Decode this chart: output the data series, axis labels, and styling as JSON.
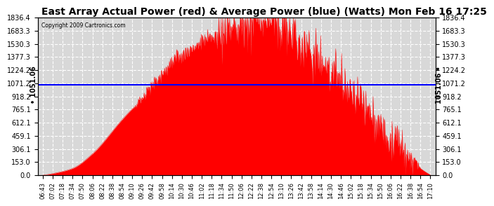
{
  "title": "East Array Actual Power (red) & Average Power (blue) (Watts) Mon Feb 16 17:25",
  "copyright": "Copyright 2009 Cartronics.com",
  "average_power": 1051.06,
  "y_ticks": [
    0.0,
    153.0,
    306.1,
    459.1,
    612.1,
    765.1,
    918.2,
    1071.2,
    1224.2,
    1377.3,
    1530.3,
    1683.3,
    1836.4
  ],
  "y_max": 1836.4,
  "y_min": 0.0,
  "x_labels": [
    "06:43",
    "07:02",
    "07:18",
    "07:34",
    "07:50",
    "08:06",
    "08:22",
    "08:38",
    "08:54",
    "09:10",
    "09:26",
    "09:42",
    "09:58",
    "10:14",
    "10:30",
    "10:46",
    "11:02",
    "11:18",
    "11:34",
    "11:50",
    "12:06",
    "12:22",
    "12:38",
    "12:54",
    "13:10",
    "13:26",
    "13:42",
    "13:58",
    "14:14",
    "14:30",
    "14:46",
    "15:02",
    "15:18",
    "15:34",
    "15:50",
    "16:06",
    "16:22",
    "16:38",
    "16:54",
    "17:10"
  ],
  "background_color": "#ffffff",
  "plot_bg_color": "#d8d8d8",
  "grid_color": "#ffffff",
  "fill_color": "#ff0000",
  "line_color": "#0000ff",
  "title_fontsize": 10,
  "tick_fontsize": 7,
  "avg_label": "1051.06"
}
